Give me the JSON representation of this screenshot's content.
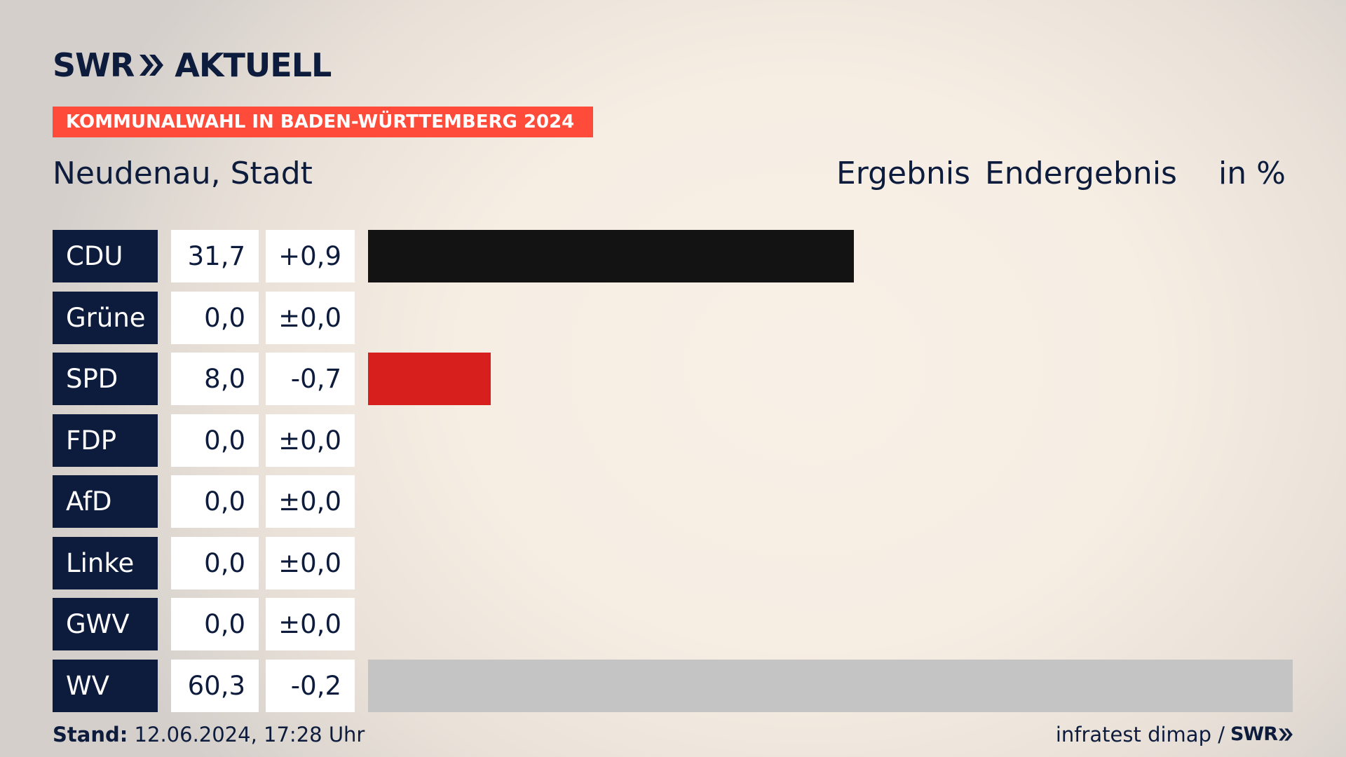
{
  "brand": {
    "logo_left": "SWR",
    "logo_right": "AKTUELL"
  },
  "banner": "KOMMUNALWAHL IN BADEN-WÜRTTEMBERG 2024",
  "place": "Neudenau, Stadt",
  "headers": {
    "ergebnis": "Ergebnis",
    "endergebnis": "Endergebnis",
    "unit": "in %"
  },
  "colors": {
    "navy": "#0d1c3d",
    "banner": "#ff4b3a",
    "cdu": "#131313",
    "spd": "#d7201e",
    "wv": "#c4c4c4"
  },
  "chart_data": {
    "type": "bar",
    "orientation": "horizontal",
    "unit": "%",
    "xlim": [
      0,
      60.3
    ],
    "categories": [
      "CDU",
      "Grüne",
      "SPD",
      "FDP",
      "AfD",
      "Linke",
      "GWV",
      "WV"
    ],
    "values": [
      31.7,
      0.0,
      8.0,
      0.0,
      0.0,
      0.0,
      0.0,
      60.3
    ],
    "value_labels": [
      "31,7",
      "0,0",
      "8,0",
      "0,0",
      "0,0",
      "0,0",
      "0,0",
      "60,3"
    ],
    "diff_labels": [
      "+0,9",
      "±0,0",
      "-0,7",
      "±0,0",
      "±0,0",
      "±0,0",
      "±0,0",
      "-0,2"
    ],
    "bar_colors": [
      "#131313",
      "#1f9a3b",
      "#d7201e",
      "#f5d60a",
      "#1d9bd7",
      "#9b1d5a",
      "#8a8a8a",
      "#c4c4c4"
    ]
  },
  "footer": {
    "stand_label": "Stand:",
    "stand_value": " 12.06.2024, 17:28 Uhr",
    "source": "infratest dimap /",
    "source_logo": "SWR"
  }
}
